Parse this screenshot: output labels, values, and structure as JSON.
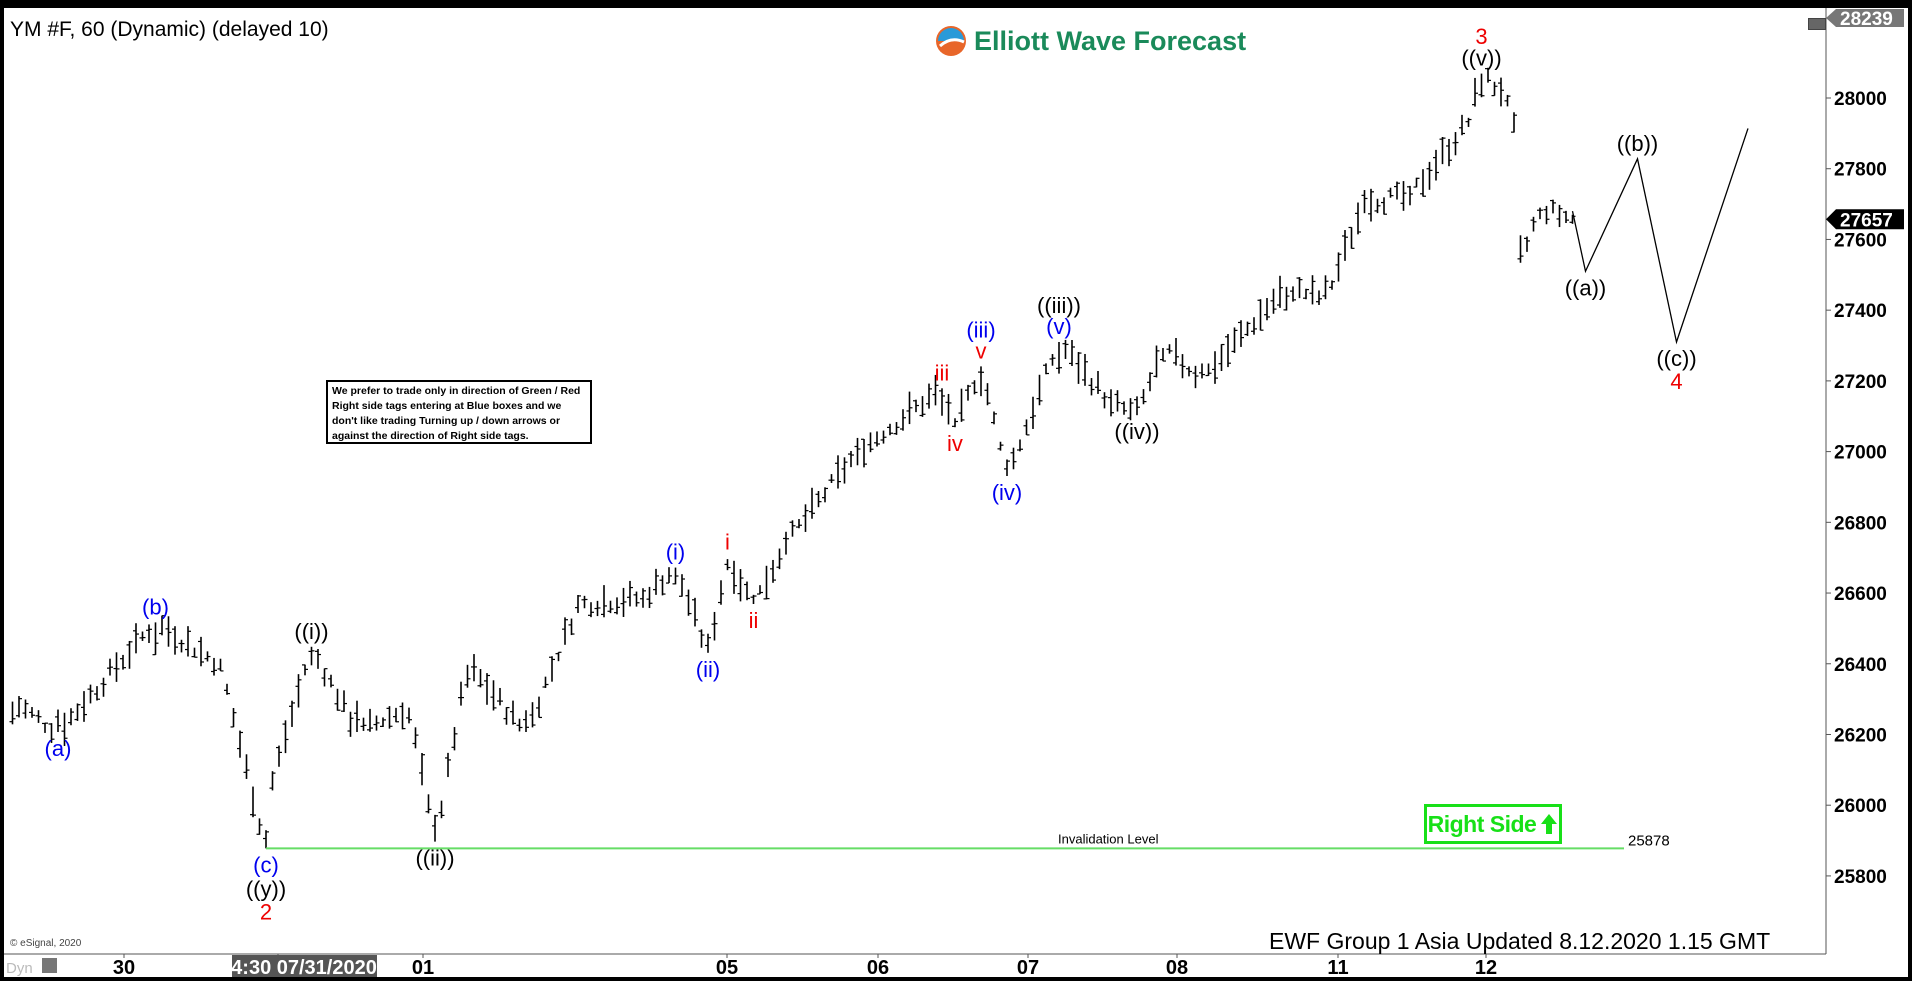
{
  "header": {
    "title": "YM #F, 60 (Dynamic) (delayed 10)",
    "logo_text": "Elliott Wave Forecast"
  },
  "note": "We prefer to trade only in direction of Green / Red Right side tags entering at Blue boxes and we don't like trading Turning up / down arrows or against the direction of Right side tags.",
  "right_side_tag": {
    "label": "Right Side",
    "arrow": "up-arrow-icon",
    "color": "#18e018"
  },
  "footer": "EWF Group 1 Asia Updated 8.12.2020 1.15 GMT",
  "copyright": "© eSignal, 2020",
  "dyn_label": "Dyn",
  "chart_data": {
    "type": "ohlc-bar",
    "interval": "60 min",
    "ylim": [
      25650,
      28240
    ],
    "y_ticks": [
      25800,
      26000,
      26200,
      26400,
      26600,
      26800,
      27000,
      27200,
      27400,
      27600,
      27800,
      28000
    ],
    "x_tick_labels": [
      "30",
      "4:30 07/31/2020",
      "01",
      "05",
      "06",
      "07",
      "08",
      "11",
      "12"
    ],
    "last_price": "27657",
    "high_marker": "28239",
    "price_path_pivots": [
      {
        "bar": 1,
        "price": 26293
      },
      {
        "bar": 8,
        "price": 26207
      },
      {
        "bar": 23,
        "price": 26517
      },
      {
        "bar": 33,
        "price": 26397
      },
      {
        "bar": 40,
        "price": 25878
      },
      {
        "bar": 41,
        "price": 26069
      },
      {
        "bar": 47,
        "price": 26448
      },
      {
        "bar": 54,
        "price": 26207
      },
      {
        "bar": 62,
        "price": 26276
      },
      {
        "bar": 66,
        "price": 25897
      },
      {
        "bar": 71,
        "price": 26397
      },
      {
        "bar": 80,
        "price": 26207
      },
      {
        "bar": 88,
        "price": 26569
      },
      {
        "bar": 98,
        "price": 26586
      },
      {
        "bar": 103,
        "price": 26672
      },
      {
        "bar": 108,
        "price": 26431
      },
      {
        "bar": 111,
        "price": 26696
      },
      {
        "bar": 115,
        "price": 26569
      },
      {
        "bar": 120,
        "price": 26741
      },
      {
        "bar": 131,
        "price": 27000
      },
      {
        "bar": 144,
        "price": 27179
      },
      {
        "bar": 146,
        "price": 27069
      },
      {
        "bar": 150,
        "price": 27241
      },
      {
        "bar": 154,
        "price": 26931
      },
      {
        "bar": 162,
        "price": 27310
      },
      {
        "bar": 170,
        "price": 27138
      },
      {
        "bar": 174,
        "price": 27103
      },
      {
        "bar": 178,
        "price": 27293
      },
      {
        "bar": 184,
        "price": 27207
      },
      {
        "bar": 197,
        "price": 27466
      },
      {
        "bar": 203,
        "price": 27431
      },
      {
        "bar": 209,
        "price": 27707
      },
      {
        "bar": 216,
        "price": 27724
      },
      {
        "bar": 225,
        "price": 27931
      },
      {
        "bar": 227,
        "price": 28069
      },
      {
        "bar": 230,
        "price": 28017
      },
      {
        "bar": 232,
        "price": 27931
      },
      {
        "bar": 233,
        "price": 27534
      },
      {
        "bar": 236,
        "price": 27690
      },
      {
        "bar": 241,
        "price": 27657
      }
    ],
    "projection": [
      {
        "bar": 241,
        "price": 27680
      },
      {
        "bar": 243,
        "price": 27510
      },
      {
        "bar": 251,
        "price": 27828
      },
      {
        "bar": 257,
        "price": 27310
      },
      {
        "bar": 268,
        "price": 27914
      }
    ],
    "invalidation": {
      "label": "Invalidation Level",
      "value": "25878",
      "price": 25878,
      "color": "#66dd66"
    },
    "wave_labels": [
      {
        "text": "(a)",
        "bar": 8,
        "price": 26207,
        "pos": "below",
        "color": "#0000ee"
      },
      {
        "text": "(b)",
        "bar": 23,
        "price": 26517,
        "pos": "above",
        "color": "#0000ee"
      },
      {
        "text": "(c)",
        "bar": 40,
        "price": 25878,
        "pos": "below",
        "color": "#0000ee"
      },
      {
        "text": "((y))",
        "bar": 40,
        "price": 25810,
        "pos": "below",
        "color": "#000000"
      },
      {
        "text": "2",
        "bar": 40,
        "price": 25745,
        "pos": "below",
        "color": "#ee0000"
      },
      {
        "text": "((i))",
        "bar": 47,
        "price": 26448,
        "pos": "above",
        "color": "#000000"
      },
      {
        "text": "((ii))",
        "bar": 66,
        "price": 25897,
        "pos": "below",
        "color": "#000000"
      },
      {
        "text": "(i)",
        "bar": 103,
        "price": 26672,
        "pos": "above",
        "color": "#0000ee"
      },
      {
        "text": "(ii)",
        "bar": 108,
        "price": 26431,
        "pos": "below",
        "color": "#0000ee"
      },
      {
        "text": "i",
        "bar": 111,
        "price": 26700,
        "pos": "above",
        "color": "#ee0000"
      },
      {
        "text": "ii",
        "bar": 115,
        "price": 26569,
        "pos": "below",
        "color": "#ee0000"
      },
      {
        "text": "iii",
        "bar": 144,
        "price": 27179,
        "pos": "above",
        "color": "#ee0000"
      },
      {
        "text": "iv",
        "bar": 146,
        "price": 27069,
        "pos": "below",
        "color": "#ee0000"
      },
      {
        "text": "(iii)",
        "bar": 150,
        "price": 27300,
        "pos": "above",
        "color": "#0000ee"
      },
      {
        "text": "v",
        "bar": 150,
        "price": 27241,
        "pos": "above",
        "color": "#ee0000"
      },
      {
        "text": "(iv)",
        "bar": 154,
        "price": 26931,
        "pos": "below",
        "color": "#0000ee"
      },
      {
        "text": "((iii))",
        "bar": 162,
        "price": 27370,
        "pos": "above",
        "color": "#000000"
      },
      {
        "text": "(v)",
        "bar": 162,
        "price": 27310,
        "pos": "above",
        "color": "#0000ee"
      },
      {
        "text": "((iv))",
        "bar": 174,
        "price": 27103,
        "pos": "below",
        "color": "#000000"
      },
      {
        "text": "3",
        "bar": 227,
        "price": 28130,
        "pos": "above",
        "color": "#ee0000"
      },
      {
        "text": "((v))",
        "bar": 227,
        "price": 28069,
        "pos": "above",
        "color": "#000000"
      },
      {
        "text": "((a))",
        "bar": 243,
        "price": 27510,
        "pos": "below",
        "color": "#000000"
      },
      {
        "text": "((b))",
        "bar": 251,
        "price": 27828,
        "pos": "above",
        "color": "#000000"
      },
      {
        "text": "((c))",
        "bar": 257,
        "price": 27310,
        "pos": "below",
        "color": "#000000"
      },
      {
        "text": "4",
        "bar": 257,
        "price": 27245,
        "pos": "below",
        "color": "#ee0000"
      }
    ]
  }
}
